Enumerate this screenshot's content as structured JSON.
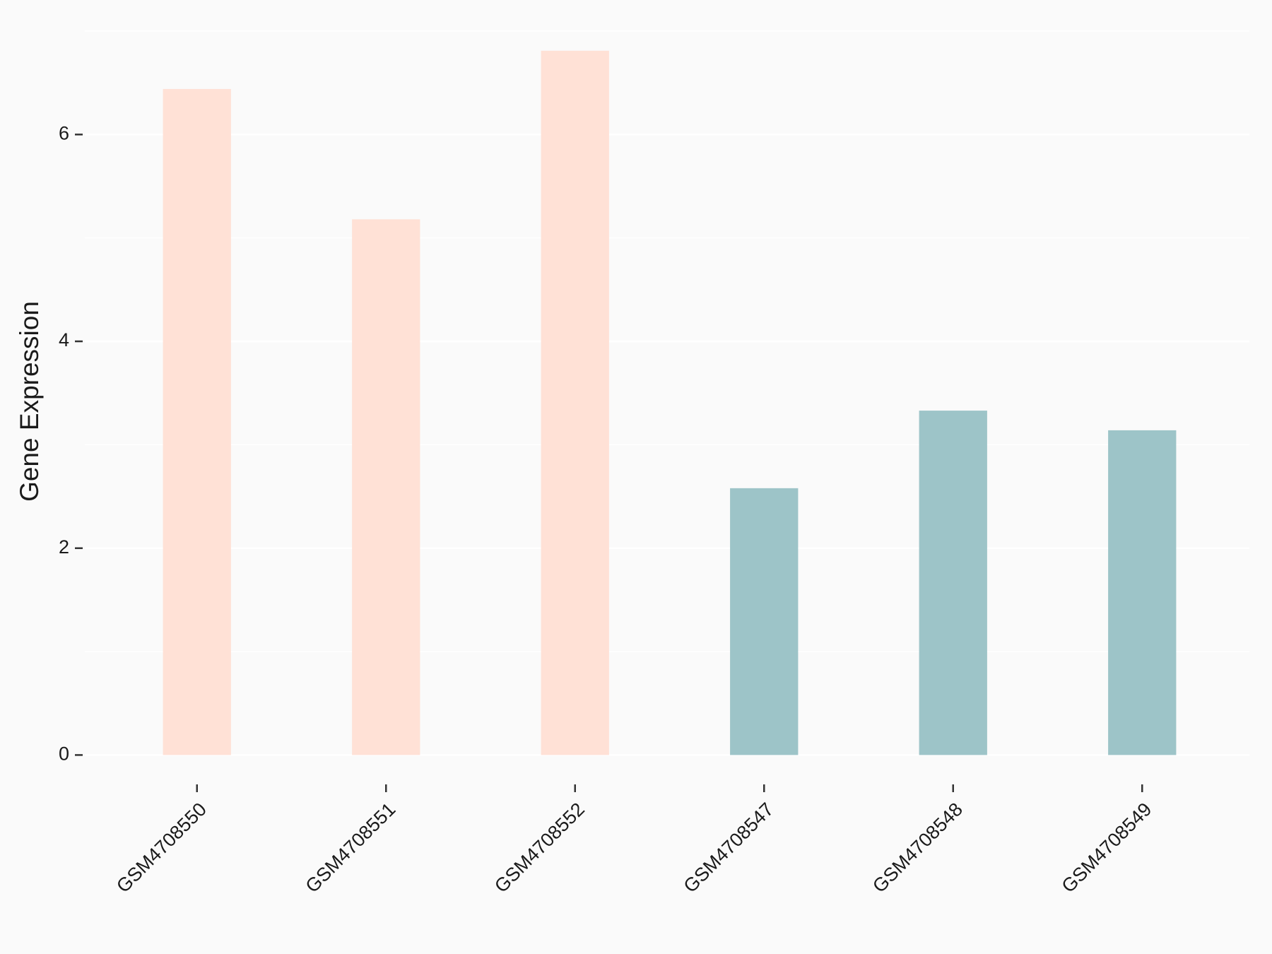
{
  "chart_data": {
    "type": "bar",
    "y_label": "Gene Expression",
    "categories": [
      "GSM4708550",
      "GSM4708551",
      "GSM4708552",
      "GSM4708547",
      "GSM4708548",
      "GSM4708549"
    ],
    "values": [
      6.44,
      5.18,
      6.81,
      2.58,
      3.33,
      3.14
    ],
    "colors": [
      "#ffe1d6",
      "#ffe1d6",
      "#ffe1d6",
      "#9dc4c8",
      "#9dc4c8",
      "#9dc4c8"
    ],
    "ylim": [
      -0.25,
      7
    ],
    "yticks": [
      0,
      2,
      4,
      6
    ],
    "grid": true
  }
}
